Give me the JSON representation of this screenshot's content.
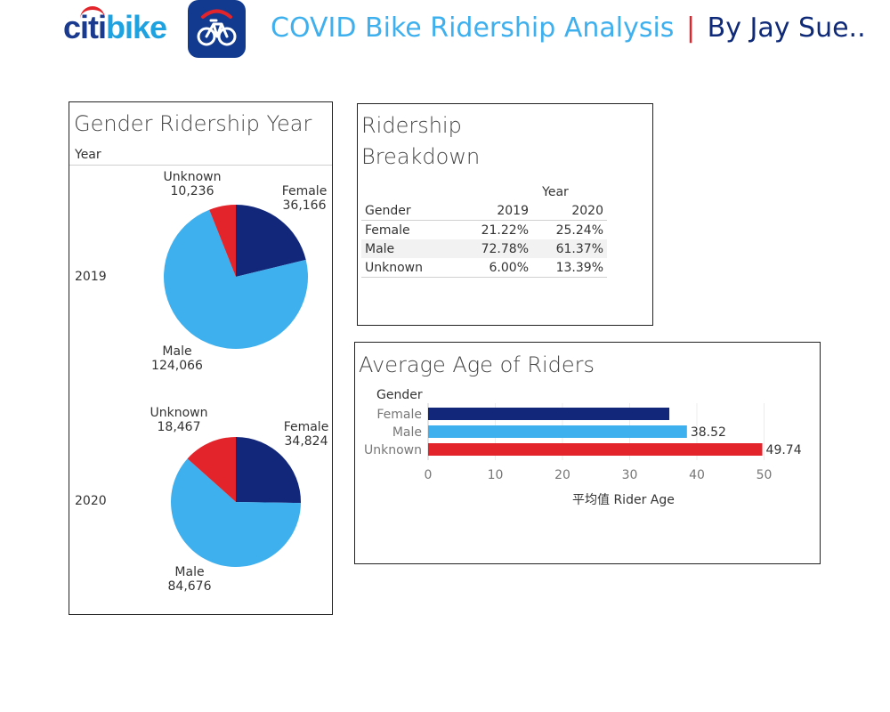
{
  "header": {
    "logo_citi": "citi",
    "logo_bike": "bike",
    "title": "COVID Bike Ridership Analysis",
    "separator": "|",
    "author": "By Jay Sue.."
  },
  "colors": {
    "female": "#13277a",
    "male": "#3fb0ee",
    "unknown": "#e3242b"
  },
  "chart_data": [
    {
      "type": "pie",
      "title": "Gender Ridership Year",
      "row_header": "Year",
      "pies": [
        {
          "year": "2019",
          "slices": [
            {
              "label": "Female",
              "value": 36166,
              "display": "36,166"
            },
            {
              "label": "Male",
              "value": 124066,
              "display": "124,066"
            },
            {
              "label": "Unknown",
              "value": 10236,
              "display": "10,236"
            }
          ]
        },
        {
          "year": "2020",
          "slices": [
            {
              "label": "Female",
              "value": 34824,
              "display": "34,824"
            },
            {
              "label": "Male",
              "value": 84676,
              "display": "84,676"
            },
            {
              "label": "Unknown",
              "value": 18467,
              "display": "18,467"
            }
          ]
        }
      ]
    },
    {
      "type": "table",
      "title": "Ridership Breakdown",
      "column_group": "Year",
      "row_header": "Gender",
      "columns": [
        "2019",
        "2020"
      ],
      "rows": [
        {
          "label": "Female",
          "values": [
            "21.22%",
            "25.24%"
          ]
        },
        {
          "label": "Male",
          "values": [
            "72.78%",
            "61.37%"
          ]
        },
        {
          "label": "Unknown",
          "values": [
            "6.00%",
            "13.39%"
          ]
        }
      ]
    },
    {
      "type": "bar",
      "orientation": "horizontal",
      "title": "Average Age of Riders",
      "category_header": "Gender",
      "categories": [
        "Female",
        "Male",
        "Unknown"
      ],
      "values": [
        35.9,
        38.52,
        49.74
      ],
      "data_labels": [
        "",
        "38.52",
        "49.74"
      ],
      "xlabel": "平均值 Rider Age",
      "xticks": [
        "0",
        "10",
        "20",
        "30",
        "40",
        "50"
      ],
      "xlim": [
        0,
        58
      ],
      "grid": true
    }
  ]
}
